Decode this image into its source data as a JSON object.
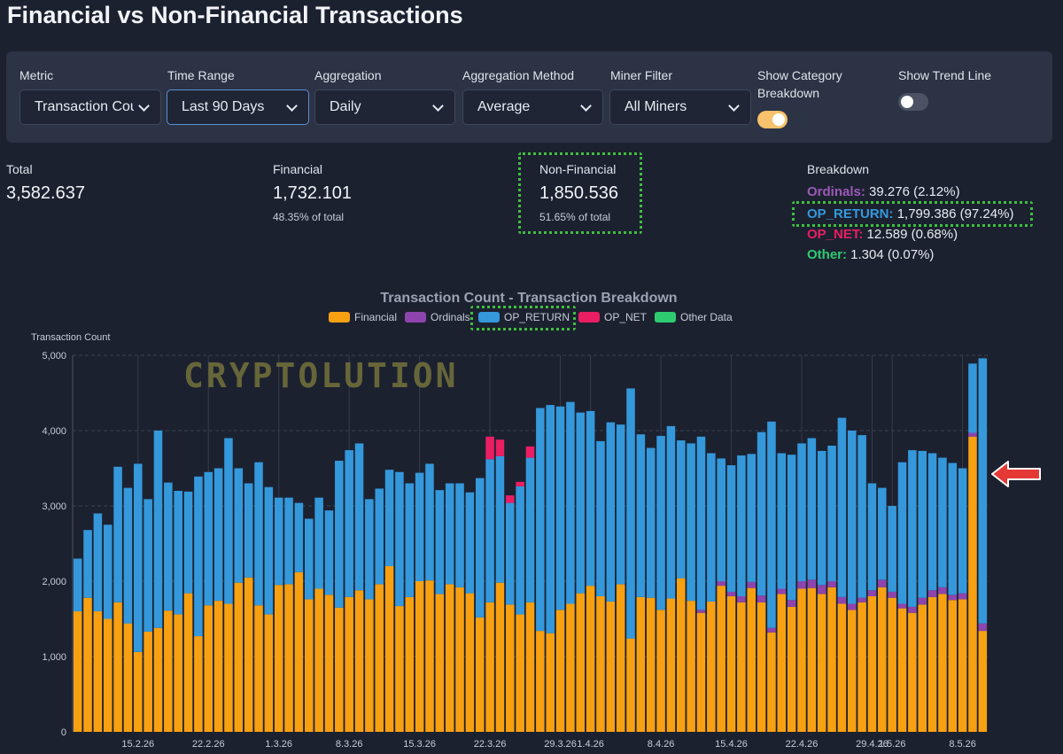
{
  "page_title": "Financial vs Non-Financial Transactions",
  "controls": {
    "metric": {
      "label": "Metric",
      "value": "Transaction Count"
    },
    "time_range": {
      "label": "Time Range",
      "value": "Last 90 Days"
    },
    "aggregation": {
      "label": "Aggregation",
      "value": "Daily"
    },
    "aggregation_method": {
      "label": "Aggregation Method",
      "value": "Average"
    },
    "miner_filter": {
      "label": "Miner Filter",
      "value": "All Miners"
    },
    "show_category_breakdown": {
      "label": "Show Category Breakdown",
      "on": true
    },
    "show_trend_line": {
      "label": "Show Trend Line",
      "on": false
    }
  },
  "stats": {
    "total": {
      "label": "Total",
      "value": "3,582.637"
    },
    "financial": {
      "label": "Financial",
      "value": "1,732.101",
      "sub": "48.35% of total"
    },
    "non_financial": {
      "label": "Non-Financial",
      "value": "1,850.536",
      "sub": "51.65% of total"
    }
  },
  "breakdown": {
    "label": "Breakdown",
    "items": [
      {
        "name": "Ordinals:",
        "value": "39.276 (2.12%)",
        "color": "#9b59b6"
      },
      {
        "name": "OP_RETURN:",
        "value": "1,799.386 (97.24%)",
        "color": "#3498db"
      },
      {
        "name": "OP_NET:",
        "value": "12.589 (0.68%)",
        "color": "#e91e63"
      },
      {
        "name": "Other:",
        "value": "1.304 (0.07%)",
        "color": "#2ecc71"
      }
    ]
  },
  "watermark": "CRYPTOLUTION",
  "chart_data": {
    "type": "bar",
    "stacked": true,
    "title": "Transaction Count - Transaction Breakdown",
    "ylabel": "Transaction Count",
    "xlabel": "",
    "ylim": [
      0,
      5000
    ],
    "yticks": [
      0,
      1000,
      2000,
      3000,
      4000,
      5000
    ],
    "ytick_labels": [
      "0",
      "1,000",
      "2,000",
      "3,000",
      "4,000",
      "5,000"
    ],
    "xtick_labels": [
      {
        "label": "15.2.26",
        "index": 6
      },
      {
        "label": "22.2.26",
        "index": 13
      },
      {
        "label": "1.3.26",
        "index": 20
      },
      {
        "label": "8.3.26",
        "index": 27
      },
      {
        "label": "15.3.26",
        "index": 34
      },
      {
        "label": "22.3.26",
        "index": 41
      },
      {
        "label": "29.3.26",
        "index": 48
      },
      {
        "label": "1.4.26",
        "index": 51
      },
      {
        "label": "8.4.26",
        "index": 58
      },
      {
        "label": "15.4.26",
        "index": 65
      },
      {
        "label": "22.4.26",
        "index": 72
      },
      {
        "label": "29.4.26",
        "index": 79
      },
      {
        "label": "1.5.26",
        "index": 81
      },
      {
        "label": "8.5.26",
        "index": 88
      }
    ],
    "legend_position": "top",
    "grid": true,
    "series": [
      {
        "name": "Financial",
        "color": "#f7a012",
        "values": [
          1600,
          1780,
          1600,
          1500,
          1720,
          1440,
          1060,
          1330,
          1380,
          1610,
          1560,
          1840,
          1270,
          1680,
          1740,
          1700,
          1980,
          2050,
          1680,
          1560,
          1950,
          1960,
          2120,
          1760,
          1900,
          1820,
          1650,
          1790,
          1880,
          1760,
          1960,
          2200,
          1670,
          1790,
          2000,
          2010,
          1830,
          1960,
          1920,
          1840,
          1520,
          1720,
          1980,
          1690,
          1560,
          1720,
          1340,
          1310,
          1620,
          1700,
          1840,
          1940,
          1800,
          1730,
          1960,
          1240,
          1790,
          1780,
          1620,
          1770,
          2040,
          1740,
          1580,
          1730,
          1940,
          1800,
          1720,
          1910,
          1720,
          1320,
          1830,
          1660,
          1900,
          1910,
          1830,
          1920,
          1700,
          1620,
          1720,
          1800,
          1920,
          1780,
          1640,
          1580,
          1690,
          1790,
          1830,
          1750,
          1760,
          3920,
          1340
        ]
      },
      {
        "name": "Ordinals",
        "color": "#8e44ad",
        "values": [
          0,
          0,
          0,
          0,
          0,
          0,
          0,
          0,
          0,
          0,
          0,
          0,
          0,
          0,
          0,
          0,
          0,
          0,
          0,
          0,
          0,
          0,
          0,
          0,
          0,
          0,
          0,
          0,
          0,
          0,
          0,
          0,
          0,
          0,
          0,
          0,
          0,
          0,
          0,
          0,
          0,
          0,
          0,
          0,
          0,
          0,
          0,
          0,
          0,
          0,
          0,
          0,
          0,
          0,
          0,
          0,
          0,
          0,
          0,
          0,
          0,
          0,
          40,
          0,
          60,
          60,
          80,
          80,
          90,
          60,
          70,
          90,
          100,
          110,
          120,
          80,
          90,
          80,
          60,
          80,
          100,
          80,
          60,
          80,
          90,
          90,
          90,
          70,
          80,
          50,
          100
        ]
      },
      {
        "name": "OP_RETURN",
        "color": "#3498db",
        "values": [
          700,
          900,
          1300,
          1250,
          1800,
          1800,
          2500,
          1760,
          2620,
          1700,
          1640,
          1350,
          2120,
          1770,
          1760,
          2200,
          1520,
          1250,
          1900,
          1690,
          1160,
          1150,
          920,
          1070,
          1210,
          1120,
          1950,
          1950,
          1950,
          1330,
          1270,
          1280,
          1780,
          1510,
          1440,
          1550,
          1380,
          1340,
          1380,
          1340,
          1850,
          1900,
          1680,
          1350,
          1700,
          1920,
          2960,
          3030,
          2700,
          2680,
          2400,
          2320,
          2060,
          2380,
          2120,
          3320,
          2160,
          1990,
          2310,
          2290,
          1830,
          2090,
          2300,
          1970,
          1630,
          1680,
          1870,
          1700,
          2170,
          2740,
          1800,
          1930,
          1830,
          1880,
          1780,
          1800,
          2380,
          2300,
          2160,
          1420,
          1220,
          1140,
          1880,
          2080,
          1950,
          1820,
          1720,
          1750,
          1660,
          920,
          3520
        ]
      },
      {
        "name": "OP_NET",
        "color": "#e91e63",
        "values": [
          0,
          0,
          0,
          0,
          0,
          0,
          0,
          0,
          0,
          0,
          0,
          0,
          0,
          0,
          0,
          0,
          0,
          0,
          0,
          0,
          0,
          0,
          0,
          0,
          0,
          0,
          0,
          0,
          0,
          0,
          0,
          0,
          0,
          0,
          0,
          0,
          0,
          0,
          0,
          0,
          0,
          300,
          220,
          100,
          60,
          150,
          0,
          0,
          0,
          0,
          0,
          0,
          0,
          0,
          0,
          0,
          0,
          0,
          0,
          0,
          0,
          0,
          0,
          0,
          0,
          0,
          0,
          0,
          0,
          0,
          0,
          0,
          0,
          0,
          0,
          0,
          0,
          0,
          0,
          0,
          0,
          0,
          0,
          0,
          0,
          0,
          0,
          0,
          0,
          0,
          0
        ]
      },
      {
        "name": "Other Data",
        "color": "#2ecc71",
        "values": [
          0,
          0,
          0,
          0,
          0,
          0,
          0,
          0,
          0,
          0,
          0,
          0,
          0,
          0,
          0,
          0,
          0,
          0,
          0,
          0,
          0,
          0,
          0,
          0,
          0,
          0,
          0,
          0,
          0,
          0,
          0,
          0,
          0,
          0,
          0,
          0,
          0,
          0,
          0,
          0,
          0,
          0,
          0,
          0,
          0,
          0,
          0,
          0,
          0,
          0,
          0,
          0,
          0,
          0,
          0,
          0,
          0,
          0,
          0,
          0,
          0,
          0,
          0,
          0,
          0,
          0,
          0,
          0,
          0,
          0,
          0,
          0,
          0,
          0,
          0,
          0,
          0,
          0,
          0,
          0,
          0,
          0,
          0,
          0,
          0,
          0,
          0,
          0,
          0,
          0,
          0
        ]
      }
    ]
  }
}
